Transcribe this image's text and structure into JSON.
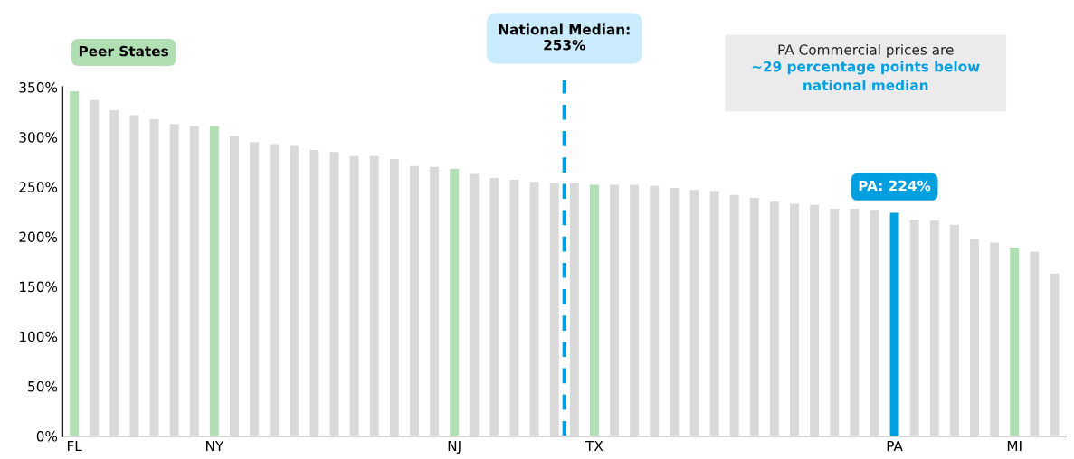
{
  "chart_data": {
    "type": "bar",
    "categories": [
      "FL",
      null,
      null,
      null,
      null,
      null,
      null,
      "NY",
      null,
      null,
      null,
      null,
      null,
      null,
      null,
      null,
      null,
      null,
      null,
      "NJ",
      null,
      null,
      null,
      null,
      null,
      null,
      "TX",
      null,
      null,
      null,
      null,
      null,
      null,
      null,
      null,
      null,
      null,
      null,
      null,
      null,
      null,
      "PA",
      null,
      null,
      null,
      null,
      null,
      "MI",
      null,
      null
    ],
    "values": [
      346,
      337,
      327,
      322,
      318,
      313,
      311,
      311,
      301,
      295,
      293,
      291,
      287,
      285,
      281,
      281,
      278,
      271,
      270,
      268,
      263,
      259,
      257,
      255,
      254,
      254,
      252,
      252,
      252,
      251,
      249,
      247,
      246,
      242,
      239,
      235,
      233,
      232,
      228,
      228,
      227,
      224,
      217,
      216,
      212,
      198,
      194,
      189,
      185,
      163
    ],
    "colors": [
      "#b0dfb4",
      "#d9d9d9",
      "#d9d9d9",
      "#d9d9d9",
      "#d9d9d9",
      "#d9d9d9",
      "#d9d9d9",
      "#b0dfb4",
      "#d9d9d9",
      "#d9d9d9",
      "#d9d9d9",
      "#d9d9d9",
      "#d9d9d9",
      "#d9d9d9",
      "#d9d9d9",
      "#d9d9d9",
      "#d9d9d9",
      "#d9d9d9",
      "#d9d9d9",
      "#b0dfb4",
      "#d9d9d9",
      "#d9d9d9",
      "#d9d9d9",
      "#d9d9d9",
      "#d9d9d9",
      "#d9d9d9",
      "#b0dfb4",
      "#d9d9d9",
      "#d9d9d9",
      "#d9d9d9",
      "#d9d9d9",
      "#d9d9d9",
      "#d9d9d9",
      "#d9d9d9",
      "#d9d9d9",
      "#d9d9d9",
      "#d9d9d9",
      "#d9d9d9",
      "#d9d9d9",
      "#d9d9d9",
      "#d9d9d9",
      "#009fe0",
      "#d9d9d9",
      "#d9d9d9",
      "#d9d9d9",
      "#d9d9d9",
      "#d9d9d9",
      "#b0dfb4",
      "#d9d9d9",
      "#d9d9d9"
    ],
    "ylim": [
      0,
      350
    ],
    "yticks": [
      {
        "value": 0,
        "label": "0%"
      },
      {
        "value": 50,
        "label": "50%"
      },
      {
        "value": 100,
        "label": "100%"
      },
      {
        "value": 150,
        "label": "150%"
      },
      {
        "value": 200,
        "label": "200%"
      },
      {
        "value": 250,
        "label": "250%"
      },
      {
        "value": 300,
        "label": "300%"
      },
      {
        "value": 350,
        "label": "350%"
      }
    ],
    "annotations": [
      "Peer States",
      "PA Commercial prices are",
      "~29 percentage points below\nnational median",
      {
        "text": "PA: 224%",
        "x": "PA",
        "y": 224
      },
      "National Median:\n253%"
    ],
    "grid": false,
    "legend": false
  }
}
